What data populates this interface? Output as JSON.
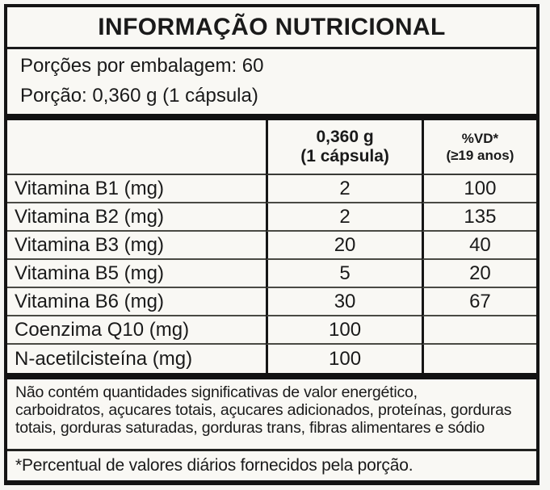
{
  "colors": {
    "ink": "#1a1a1a",
    "paper": "#f9f8f4",
    "rule": "#141414"
  },
  "label": {
    "title": "INFORMAÇÃO NUTRICIONAL",
    "servings_per_package": "Porções por embalagem: 60",
    "serving_size": "Porção: 0,360 g (1 cápsula)",
    "table": {
      "columns": {
        "amount_line1": "0,360 g",
        "amount_line2": "(1 cápsula)",
        "vd_line1": "%VD*",
        "vd_line2": "(≥19 anos)"
      },
      "rows": [
        {
          "name": "Vitamina B1 (mg)",
          "amount": "2",
          "vd": "100"
        },
        {
          "name": "Vitamina B2 (mg)",
          "amount": "2",
          "vd": "135"
        },
        {
          "name": "Vitamina B3 (mg)",
          "amount": "20",
          "vd": "40"
        },
        {
          "name": "Vitamina B5 (mg)",
          "amount": "5",
          "vd": "20"
        },
        {
          "name": "Vitamina B6 (mg)",
          "amount": "30",
          "vd": "67"
        },
        {
          "name": "Coenzima Q10 (mg)",
          "amount": "100",
          "vd": ""
        },
        {
          "name": "N-acetilcisteína (mg)",
          "amount": "100",
          "vd": ""
        }
      ]
    },
    "note_lines": [
      "Não contém quantidades significativas de valor energético,",
      "carboidratos, açucares totais, açucares adicionados, proteínas, gorduras",
      "totais, gorduras saturadas, gorduras trans, fibras alimentares e sódio"
    ],
    "footnote": "*Percentual de valores diários fornecidos pela porção."
  }
}
